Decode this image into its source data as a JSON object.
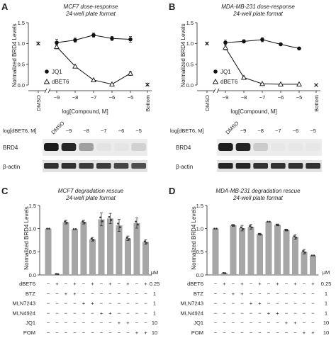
{
  "panels": {
    "A": {
      "letter": "A",
      "title_line1": "MCF7 dose-response",
      "title_line2": "24-well plate format",
      "ylabel": "Normalized BRD4 Levels",
      "xlabel": "log[Compound, M]",
      "legend": {
        "jq1": "JQ1",
        "dbet6": "dBET6"
      },
      "blot": {
        "header_label": "log[dBET6, M]",
        "lanes": [
          "DMSO",
          "−9",
          "−8",
          "−7",
          "−6",
          "−5"
        ],
        "rows": [
          "BRD4",
          "β-actin"
        ]
      }
    },
    "B": {
      "letter": "B",
      "title_line1": "MDA-MB-231 dose-response",
      "title_line2": "24-well plate format",
      "ylabel": "Normalized BRD4 Levels",
      "xlabel": "log[Compound, M]",
      "legend": {
        "jq1": "JQ1",
        "dbet6": "dBET6"
      },
      "blot": {
        "header_label": "log[dBET6, M]",
        "lanes": [
          "DMSO",
          "−9",
          "−8",
          "−7",
          "−6",
          "−5"
        ],
        "rows": [
          "BRD4",
          "β-actin"
        ]
      }
    },
    "C": {
      "letter": "C",
      "title_line1": "MCF7 degradation rescue",
      "title_line2": "24-well plate format",
      "ylabel": "Normalized BRD4 Levels"
    },
    "D": {
      "letter": "D",
      "title_line1": "MDA-MB-231 degradation rescue",
      "title_line2": "24-well plate format",
      "ylabel": "Normalized BRD4 Levels"
    }
  },
  "rescue_table": {
    "unit": "μM",
    "rows": [
      {
        "label": "dBET6",
        "conc": "0.25",
        "signs": [
          "−",
          "+",
          "−",
          "+",
          "−",
          "+",
          "−",
          "+",
          "−",
          "+",
          "−",
          "+"
        ]
      },
      {
        "label": "BTZ",
        "conc": "1",
        "signs": [
          "−",
          "−",
          "+",
          "+",
          "−",
          "−",
          "−",
          "−",
          "−",
          "−",
          "−",
          "−"
        ]
      },
      {
        "label": "MLN7243",
        "conc": "1",
        "signs": [
          "−",
          "−",
          "−",
          "−",
          "+",
          "+",
          "−",
          "−",
          "−",
          "−",
          "−",
          "−"
        ]
      },
      {
        "label": "MLN4924",
        "conc": "1",
        "signs": [
          "−",
          "−",
          "−",
          "−",
          "−",
          "−",
          "+",
          "+",
          "−",
          "−",
          "−",
          "−"
        ]
      },
      {
        "label": "JQ1",
        "conc": "10",
        "signs": [
          "−",
          "−",
          "−",
          "−",
          "−",
          "−",
          "−",
          "−",
          "+",
          "+",
          "−",
          "−"
        ]
      },
      {
        "label": "POM",
        "conc": "10",
        "signs": [
          "−",
          "−",
          "−",
          "−",
          "−",
          "−",
          "−",
          "−",
          "−",
          "−",
          "+",
          "+"
        ]
      }
    ]
  },
  "chart_data": [
    {
      "panel": "A",
      "type": "line",
      "x_ticks": [
        "DMSO",
        "−9",
        "−8",
        "−7",
        "−6",
        "−5",
        "Bottom"
      ],
      "ylim": [
        0,
        1.5
      ],
      "y_ticks": [
        "0.0",
        "0.5",
        "1.0",
        "1.5"
      ],
      "series": [
        {
          "name": "JQ1",
          "x": [
            -9,
            -8,
            -7,
            -6,
            -5
          ],
          "y": [
            1.02,
            1.08,
            1.2,
            1.12,
            1.1
          ],
          "err": [
            0.08,
            0.05,
            0.05,
            0.05,
            0.07
          ]
        },
        {
          "name": "dBET6",
          "x": [
            -9,
            -8,
            -7,
            -6,
            -5
          ],
          "y": [
            0.92,
            0.45,
            0.12,
            0.02,
            0.28
          ],
          "err": [
            0.05,
            0.02,
            0.02,
            0.01,
            0.05
          ]
        }
      ],
      "dmso": {
        "y": 1.0,
        "err": 0.05
      },
      "bottom": {
        "y": 0.01,
        "err": 0.05
      }
    },
    {
      "panel": "B",
      "type": "line",
      "x_ticks": [
        "DMSO",
        "−9",
        "−8",
        "−7",
        "−6",
        "−5",
        "Bottom"
      ],
      "ylim": [
        0,
        1.5
      ],
      "y_ticks": [
        "0.0",
        "0.5",
        "1.0",
        "1.5"
      ],
      "series": [
        {
          "name": "JQ1",
          "x": [
            -9,
            -8,
            -7,
            -6,
            -5
          ],
          "y": [
            1.02,
            1.05,
            1.09,
            0.98,
            0.88
          ],
          "err": [
            0.06,
            0.04,
            0.05,
            0.03,
            0.02
          ]
        },
        {
          "name": "dBET6",
          "x": [
            -9,
            -8,
            -7,
            -6,
            -5
          ],
          "y": [
            0.9,
            0.18,
            0.03,
            0.02,
            0.02
          ],
          "err": [
            0.06,
            0.02,
            0.01,
            0.01,
            0.01
          ]
        }
      ],
      "dmso": {
        "y": 1.0,
        "err": 0.04
      },
      "bottom": {
        "y": 0.0,
        "err": 0.0
      }
    },
    {
      "panel": "C",
      "type": "bar",
      "ylim": [
        0,
        1.5
      ],
      "y_ticks": [
        "0.0",
        "0.5",
        "1.0",
        "1.5"
      ],
      "values": [
        1.0,
        0.02,
        1.14,
        0.99,
        1.14,
        0.77,
        1.2,
        1.22,
        1.07,
        0.79,
        1.12,
        0.71
      ],
      "err": [
        0.0,
        0.01,
        0.04,
        0.0,
        0.04,
        0.04,
        0.14,
        0.11,
        0.13,
        0.05,
        0.11,
        0.05
      ]
    },
    {
      "panel": "D",
      "type": "bar",
      "ylim": [
        0,
        1.5
      ],
      "y_ticks": [
        "0.0",
        "0.5",
        "1.0",
        "1.5"
      ],
      "values": [
        1.0,
        0.04,
        1.07,
        1.01,
        1.04,
        0.88,
        1.15,
        1.08,
        0.97,
        0.82,
        0.5,
        0.42
      ],
      "err": [
        0.0,
        0.01,
        0.02,
        0.06,
        0.05,
        0.02,
        0.0,
        0.02,
        0.02,
        0.05,
        0.05,
        0.0
      ]
    }
  ]
}
